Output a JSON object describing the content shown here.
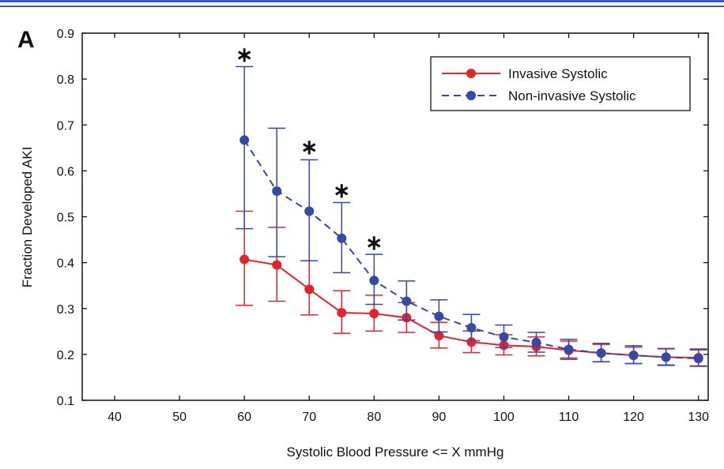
{
  "panel_label": "A",
  "chart_data": {
    "type": "line",
    "xlabel": "Systolic Blood Pressure <= X mmHg",
    "ylabel": "Fraction Developed AKI",
    "xlim": [
      35,
      131.5
    ],
    "ylim": [
      0.1,
      0.9
    ],
    "x_ticks": [
      40,
      50,
      60,
      70,
      80,
      90,
      100,
      110,
      120,
      130
    ],
    "y_ticks": [
      0.1,
      0.2,
      0.3,
      0.4,
      0.5,
      0.6,
      0.7,
      0.8,
      0.9
    ],
    "legend_position": "top-right",
    "grid": false,
    "series": [
      {
        "name": "Invasive Systolic",
        "color": "#e3232b",
        "line_style": "solid",
        "x": [
          60,
          65,
          70,
          75,
          80,
          85,
          90,
          95,
          100,
          105,
          110,
          115,
          120,
          125,
          130
        ],
        "y": [
          0.407,
          0.395,
          0.342,
          0.291,
          0.289,
          0.28,
          0.241,
          0.227,
          0.22,
          0.217,
          0.209,
          0.203,
          0.198,
          0.194,
          0.193
        ],
        "err_low": [
          0.307,
          0.316,
          0.286,
          0.246,
          0.251,
          0.248,
          0.214,
          0.204,
          0.199,
          0.197,
          0.189,
          0.184,
          0.18,
          0.176,
          0.175
        ],
        "err_high": [
          0.512,
          0.477,
          0.404,
          0.339,
          0.329,
          0.313,
          0.27,
          0.251,
          0.243,
          0.238,
          0.229,
          0.222,
          0.216,
          0.212,
          0.212
        ]
      },
      {
        "name": "Non-invasive Systolic",
        "color": "#3449a8",
        "line_style": "dashed",
        "x": [
          60,
          65,
          70,
          75,
          80,
          85,
          90,
          95,
          100,
          105,
          110,
          115,
          120,
          125,
          130
        ],
        "y": [
          0.667,
          0.556,
          0.512,
          0.453,
          0.361,
          0.316,
          0.283,
          0.258,
          0.238,
          0.226,
          0.211,
          0.203,
          0.198,
          0.194,
          0.191
        ],
        "err_low": [
          0.474,
          0.413,
          0.404,
          0.378,
          0.309,
          0.275,
          0.249,
          0.23,
          0.215,
          0.205,
          0.192,
          0.184,
          0.18,
          0.177,
          0.174
        ],
        "err_high": [
          0.827,
          0.693,
          0.624,
          0.531,
          0.418,
          0.36,
          0.319,
          0.287,
          0.264,
          0.248,
          0.233,
          0.224,
          0.219,
          0.213,
          0.21
        ]
      }
    ],
    "annotations": [
      {
        "text": "∗",
        "x": 60,
        "y": 0.855
      },
      {
        "text": "∗",
        "x": 70,
        "y": 0.654
      },
      {
        "text": "∗",
        "x": 75,
        "y": 0.559
      },
      {
        "text": "∗",
        "x": 80,
        "y": 0.446
      }
    ]
  }
}
